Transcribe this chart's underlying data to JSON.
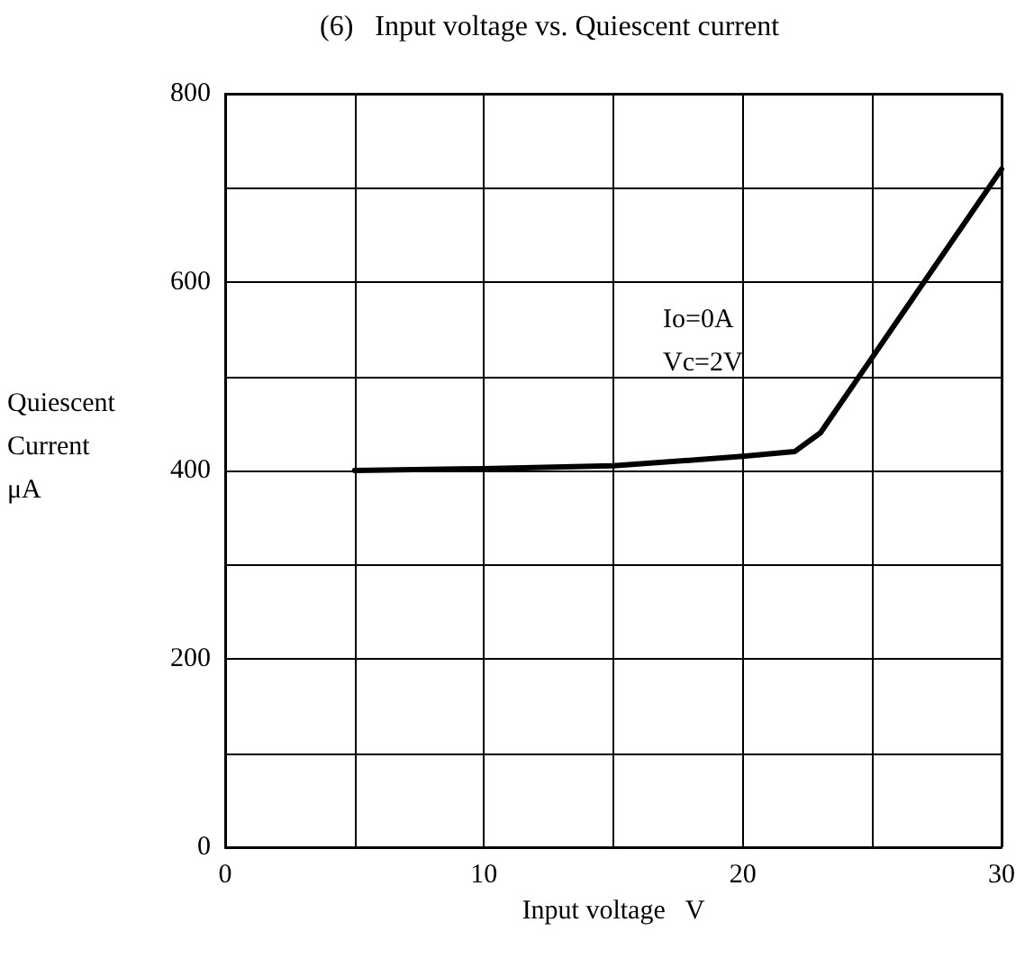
{
  "chart_data": {
    "type": "line",
    "title": "(6)   Input voltage vs. Quiescent current",
    "xlabel": "Input voltage   V",
    "ylabel": "Quiescent Current μA",
    "annotations": [
      "Io=0A",
      "Vc=2V"
    ],
    "series": [
      {
        "color": "#000000",
        "x": [
          5,
          10,
          15,
          20,
          22,
          23,
          25,
          30
        ],
        "values": [
          400,
          402,
          405,
          415,
          420,
          440,
          520,
          720
        ]
      }
    ],
    "xlim": [
      0,
      30
    ],
    "xticks": [
      0,
      {
        "value": 5,
        "label": null
      },
      10,
      {
        "value": 15,
        "label": null
      },
      20,
      {
        "value": 25,
        "label": null
      },
      30
    ],
    "ylim": [
      0,
      800
    ],
    "yticks": [
      0,
      {
        "value": 100,
        "label": null
      },
      200,
      {
        "value": 300,
        "label": null
      },
      400,
      {
        "value": 500,
        "label": null
      },
      600,
      {
        "value": 700,
        "label": null
      },
      800
    ],
    "grid": true,
    "marker": "none",
    "line_style": "solid"
  }
}
